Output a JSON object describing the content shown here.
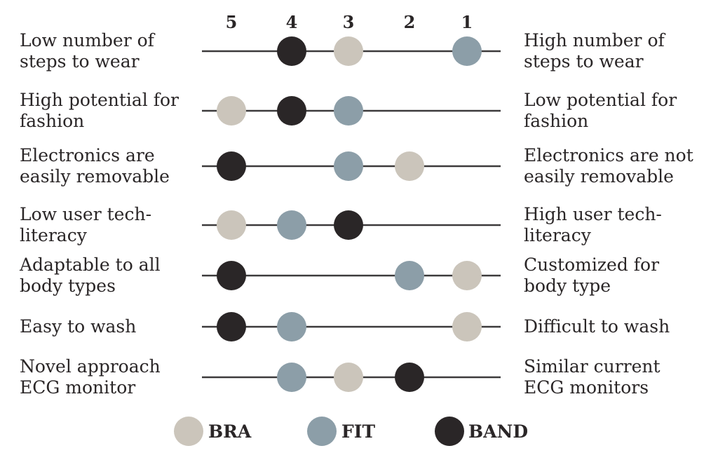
{
  "chart_data": {
    "type": "scatter",
    "scale": [
      "5",
      "4",
      "3",
      "2",
      "1"
    ],
    "series": [
      {
        "name": "BRA",
        "color": "#cbc5bb"
      },
      {
        "name": "FIT",
        "color": "#8c9ea8"
      },
      {
        "name": "BAND",
        "color": "#2a2627"
      }
    ],
    "rows": [
      {
        "left": [
          "Low number of",
          "steps to wear"
        ],
        "right": [
          "High number of",
          "steps to wear"
        ],
        "BRA": 3,
        "FIT": 1,
        "BAND": 4
      },
      {
        "left": [
          "High potential for",
          "fashion"
        ],
        "right": [
          "Low potential for",
          "fashion"
        ],
        "BRA": 5,
        "FIT": 3,
        "BAND": 4
      },
      {
        "left": [
          "Electronics are",
          "easily removable"
        ],
        "right": [
          "Electronics are not",
          "easily removable"
        ],
        "BRA": 2,
        "FIT": 3,
        "BAND": 5
      },
      {
        "left": [
          "Low user tech-",
          "literacy"
        ],
        "right": [
          "High user tech-",
          "literacy"
        ],
        "BRA": 5,
        "FIT": 4,
        "BAND": 3
      },
      {
        "left": [
          "Adaptable to all",
          "body types"
        ],
        "right": [
          "Customized for",
          "body type"
        ],
        "BRA": 1,
        "FIT": 2,
        "BAND": 5
      },
      {
        "left": [
          "Easy to wash"
        ],
        "right": [
          "Difficult to wash"
        ],
        "BRA": 1,
        "FIT": 4,
        "BAND": 5
      },
      {
        "left": [
          "Novel approach",
          "ECG monitor"
        ],
        "right": [
          "Similar current",
          "ECG monitors"
        ],
        "BRA": 3,
        "FIT": 4,
        "BAND": 2
      }
    ],
    "legend_position": "bottom-center",
    "grid": false
  }
}
